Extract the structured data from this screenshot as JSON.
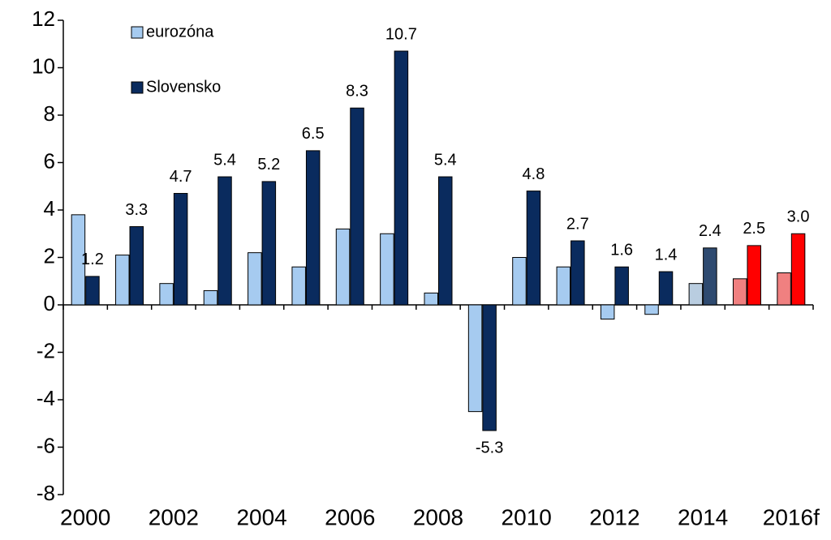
{
  "chart_data": {
    "type": "bar",
    "categories": [
      "2000",
      null,
      "2002",
      null,
      "2004",
      null,
      "2006",
      null,
      "2008",
      null,
      "2010",
      null,
      "2012",
      null,
      "2014",
      null,
      "2016f"
    ],
    "series": [
      {
        "name": "eurozóna",
        "color": "#a6cbf0",
        "colors": [
          "#a6cbf0",
          "#a6cbf0",
          "#a6cbf0",
          "#a6cbf0",
          "#a6cbf0",
          "#a6cbf0",
          "#a6cbf0",
          "#a6cbf0",
          "#a6cbf0",
          "#a6cbf0",
          "#a6cbf0",
          "#a6cbf0",
          "#a6cbf0",
          "#a6cbf0",
          "#b9cde0",
          "#f08080",
          "#f08080"
        ],
        "values": [
          3.8,
          2.1,
          0.9,
          0.6,
          2.2,
          1.6,
          3.2,
          3.0,
          0.5,
          -4.5,
          2.0,
          1.6,
          -0.6,
          -0.4,
          0.9,
          1.1,
          1.35
        ]
      },
      {
        "name": "Slovensko",
        "color": "#0a2b5e",
        "colors": [
          "#0a2b5e",
          "#0a2b5e",
          "#0a2b5e",
          "#0a2b5e",
          "#0a2b5e",
          "#0a2b5e",
          "#0a2b5e",
          "#0a2b5e",
          "#0a2b5e",
          "#0a2b5e",
          "#0a2b5e",
          "#0a2b5e",
          "#0a2b5e",
          "#0a2b5e",
          "#2e4a70",
          "#ff0000",
          "#ff0000"
        ],
        "values": [
          1.2,
          3.3,
          4.7,
          5.4,
          5.2,
          6.5,
          8.3,
          10.7,
          5.4,
          -5.3,
          4.8,
          2.7,
          1.6,
          1.4,
          2.4,
          2.5,
          3.0
        ],
        "value_labels": [
          "1.2",
          "3.3",
          "4.7",
          "5.4",
          "5.2",
          "6.5",
          "8.3",
          "10.7",
          "5.4",
          "-5.3",
          "4.8",
          "2.7",
          "1.6",
          "1.4",
          "2.4",
          "2.5",
          "3.0"
        ]
      }
    ],
    "ylim": [
      -8,
      12
    ],
    "yticks": [
      -8,
      -6,
      -4,
      -2,
      0,
      2,
      4,
      6,
      8,
      10,
      12
    ]
  }
}
